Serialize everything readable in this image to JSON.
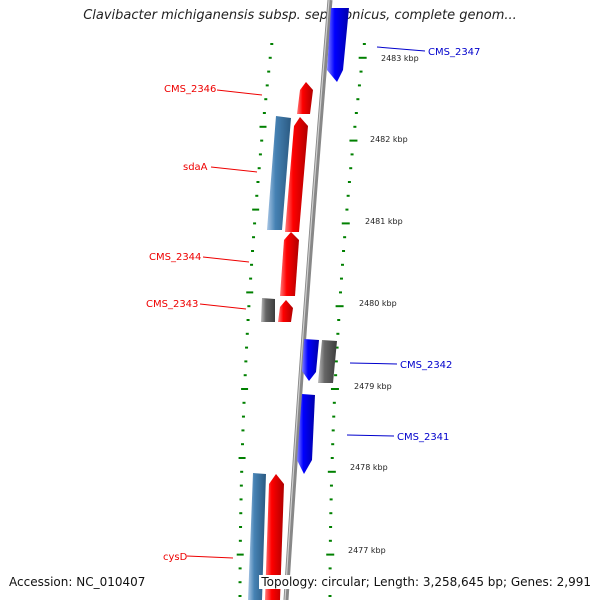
{
  "title": "Clavibacter michiganensis subsp. sepedonicus, complete genom...",
  "footer": {
    "accession": "Accession: NC_010407",
    "topology": "Topology: circular; Length: 3,258,645 bp; Genes: 2,991"
  },
  "colors": {
    "forward_gene": "#ff0000",
    "reverse_gene": "#0000ff",
    "forward_label": "#ee0000",
    "reverse_label": "#0000cc",
    "rna_feature": "#4682b4",
    "other_feature": "#666666",
    "ticks": "#008000",
    "backbone": "#888888"
  },
  "tick_labels": [
    "2483 kbp",
    "2482 kbp",
    "2481 kbp",
    "2480 kbp",
    "2479 kbp",
    "2478 kbp",
    "2477 kbp"
  ],
  "gene_labels": {
    "cms_2347": "CMS_2347",
    "cms_2346": "CMS_2346",
    "sdaA": "sdaA",
    "cms_2344": "CMS_2344",
    "cms_2343": "CMS_2343",
    "cms_2342": "CMS_2342",
    "cms_2341": "CMS_2341",
    "cysD": "cysD"
  }
}
